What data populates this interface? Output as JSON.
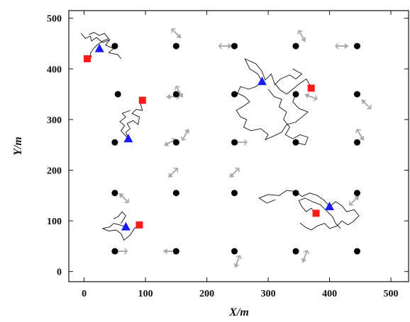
{
  "chart_data": {
    "type": "scatter",
    "title": "",
    "xlabel": "X/m",
    "ylabel": "Y/m",
    "xlim": [
      -25,
      530
    ],
    "ylim": [
      -20,
      515
    ],
    "x_ticks": [
      0,
      100,
      200,
      300,
      400,
      500
    ],
    "y_ticks": [
      0,
      100,
      200,
      300,
      400,
      500
    ],
    "grid": false,
    "legend": "none",
    "colors": {
      "node": "#000000",
      "arrow": "#aaaaaa",
      "blue_triangle": "#1a1aff",
      "red_square": "#ff1a1a",
      "trajectory": "#111111"
    },
    "series": [
      {
        "marker": "black-circle",
        "points": [
          [
            50,
            445
          ],
          [
            150,
            445
          ],
          [
            245,
            445
          ],
          [
            345,
            445
          ],
          [
            445,
            445
          ],
          [
            55,
            350
          ],
          [
            150,
            350
          ],
          [
            245,
            350
          ],
          [
            345,
            350
          ],
          [
            445,
            350
          ],
          [
            50,
            255
          ],
          [
            150,
            255
          ],
          [
            245,
            255
          ],
          [
            345,
            255
          ],
          [
            445,
            255
          ],
          [
            50,
            155
          ],
          [
            150,
            155
          ],
          [
            245,
            155
          ],
          [
            345,
            155
          ],
          [
            445,
            155
          ],
          [
            50,
            40
          ],
          [
            150,
            40
          ],
          [
            245,
            40
          ],
          [
            345,
            40
          ],
          [
            445,
            40
          ]
        ]
      },
      {
        "marker": "gray-arrow",
        "points": [
          [
            150,
            470,
            -45
          ],
          [
            230,
            445,
            0
          ],
          [
            355,
            465,
            -60
          ],
          [
            420,
            445,
            0
          ],
          [
            155,
            355,
            -60
          ],
          [
            145,
            345,
            180
          ],
          [
            370,
            345,
            160
          ],
          [
            460,
            330,
            135
          ],
          [
            165,
            270,
            60
          ],
          [
            140,
            255,
            210
          ],
          [
            255,
            255,
            180
          ],
          [
            450,
            270,
            -60
          ],
          [
            145,
            195,
            225
          ],
          [
            65,
            145,
            135
          ],
          [
            245,
            195,
            225
          ],
          [
            440,
            140,
            45
          ],
          [
            60,
            40,
            180
          ],
          [
            140,
            40,
            180
          ],
          [
            250,
            20,
            -110
          ],
          [
            360,
            30,
            -110
          ]
        ]
      },
      {
        "marker": "blue-triangle",
        "points": [
          [
            25,
            440
          ],
          [
            72,
            262
          ],
          [
            68,
            88
          ],
          [
            290,
            375
          ],
          [
            400,
            128
          ]
        ]
      },
      {
        "marker": "red-square",
        "points": [
          [
            5,
            420
          ],
          [
            95,
            338
          ],
          [
            90,
            92
          ],
          [
            370,
            362
          ],
          [
            378,
            115
          ]
        ]
      },
      {
        "marker": "trajectory",
        "paths": [
          [
            [
              -5,
              470
            ],
            [
              2,
              460
            ],
            [
              10,
              465
            ],
            [
              12,
              455
            ],
            [
              20,
              462
            ],
            [
              30,
              452
            ],
            [
              42,
              458
            ],
            [
              35,
              447
            ],
            [
              48,
              440
            ],
            [
              40,
              432
            ],
            [
              55,
              428
            ],
            [
              60,
              420
            ]
          ],
          [
            [
              8,
              468
            ],
            [
              16,
              472
            ],
            [
              25,
              466
            ],
            [
              33,
              470
            ],
            [
              40,
              460
            ],
            [
              30,
              455
            ],
            [
              22,
              448
            ],
            [
              15,
              440
            ],
            [
              10,
              430
            ],
            [
              12,
              422
            ]
          ],
          [
            [
              72,
              262
            ],
            [
              68,
              275
            ],
            [
              75,
              282
            ],
            [
              70,
              292
            ],
            [
              80,
              298
            ],
            [
              88,
              290
            ],
            [
              90,
              305
            ],
            [
              78,
              312
            ],
            [
              85,
              320
            ],
            [
              95,
              318
            ],
            [
              92,
              330
            ],
            [
              98,
              338
            ]
          ],
          [
            [
              72,
              262
            ],
            [
              60,
              278
            ],
            [
              66,
              288
            ],
            [
              58,
              296
            ],
            [
              68,
              305
            ],
            [
              62,
              312
            ],
            [
              75,
              318
            ]
          ],
          [
            [
              68,
              88
            ],
            [
              58,
              92
            ],
            [
              48,
              95
            ],
            [
              42,
              88
            ],
            [
              30,
              85
            ],
            [
              40,
              80
            ],
            [
              52,
              82
            ],
            [
              60,
              75
            ],
            [
              65,
              62
            ],
            [
              75,
              72
            ],
            [
              82,
              85
            ],
            [
              90,
              92
            ]
          ],
          [
            [
              60,
              95
            ],
            [
              68,
              110
            ],
            [
              62,
              118
            ],
            [
              55,
              108
            ],
            [
              48,
              104
            ]
          ],
          [
            [
              290,
              375
            ],
            [
              283,
              390
            ],
            [
              270,
              400
            ],
            [
              262,
              420
            ],
            [
              280,
              410
            ],
            [
              290,
              395
            ],
            [
              295,
              378
            ],
            [
              305,
              390
            ],
            [
              310,
              372
            ],
            [
              320,
              358
            ],
            [
              330,
              350
            ],
            [
              340,
              360
            ],
            [
              350,
              370
            ],
            [
              362,
              380
            ],
            [
              368,
              368
            ],
            [
              370,
              362
            ]
          ],
          [
            [
              290,
              375
            ],
            [
              280,
              365
            ],
            [
              268,
              360
            ],
            [
              255,
              365
            ],
            [
              250,
              352
            ],
            [
              262,
              345
            ],
            [
              270,
              335
            ],
            [
              258,
              325
            ],
            [
              248,
              318
            ],
            [
              255,
              305
            ],
            [
              265,
              300
            ],
            [
              260,
              285
            ],
            [
              272,
              278
            ],
            [
              288,
              282
            ],
            [
              300,
              270
            ],
            [
              295,
              260
            ],
            [
              310,
              268
            ],
            [
              322,
              275
            ],
            [
              330,
              290
            ],
            [
              345,
              295
            ],
            [
              355,
              305
            ],
            [
              365,
              315
            ],
            [
              350,
              322
            ],
            [
              340,
              335
            ],
            [
              345,
              350
            ]
          ],
          [
            [
              300,
              360
            ],
            [
              310,
              345
            ],
            [
              322,
              340
            ],
            [
              318,
              325
            ],
            [
              330,
              315
            ],
            [
              325,
              300
            ],
            [
              335,
              285
            ],
            [
              328,
              270
            ],
            [
              340,
              262
            ],
            [
              352,
              270
            ],
            [
              365,
              265
            ],
            [
              360,
              250
            ],
            [
              345,
              255
            ]
          ],
          [
            [
              310,
              368
            ],
            [
              320,
              380
            ],
            [
              335,
              388
            ],
            [
              345,
              380
            ],
            [
              355,
              390
            ],
            [
              340,
              400
            ]
          ],
          [
            [
              400,
              128
            ],
            [
              392,
              140
            ],
            [
              380,
              150
            ],
            [
              368,
              155
            ],
            [
              355,
              148
            ],
            [
              345,
              158
            ],
            [
              330,
              160
            ],
            [
              318,
              150
            ],
            [
              300,
              152
            ],
            [
              285,
              145
            ],
            [
              298,
              135
            ],
            [
              312,
              142
            ]
          ],
          [
            [
              400,
              128
            ],
            [
              410,
              138
            ],
            [
              420,
              130
            ],
            [
              428,
              118
            ],
            [
              440,
              122
            ],
            [
              448,
              110
            ],
            [
              438,
              98
            ],
            [
              430,
              92
            ],
            [
              420,
              100
            ],
            [
              412,
              90
            ],
            [
              400,
              85
            ],
            [
              392,
              95
            ],
            [
              380,
              90
            ],
            [
              370,
              82
            ],
            [
              360,
              88
            ],
            [
              352,
              96
            ]
          ],
          [
            [
              378,
              115
            ],
            [
              370,
              125
            ],
            [
              362,
              118
            ],
            [
              355,
              128
            ],
            [
              350,
              140
            ],
            [
              360,
              145
            ],
            [
              372,
              138
            ],
            [
              385,
              132
            ],
            [
              395,
              120
            ],
            [
              405,
              108
            ],
            [
              410,
              95
            ],
            [
              418,
              85
            ]
          ]
        ]
      }
    ]
  }
}
